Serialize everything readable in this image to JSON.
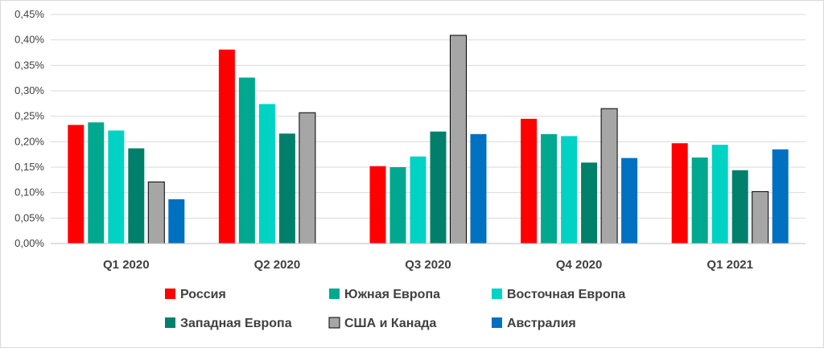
{
  "chart_data": {
    "type": "bar",
    "title": "",
    "xlabel": "",
    "ylabel": "",
    "categories": [
      "Q1 2020",
      "Q2 2020",
      "Q3 2020",
      "Q4 2020",
      "Q1 2021"
    ],
    "ylim": [
      0,
      0.45
    ],
    "yticks": [
      0,
      0.05,
      0.1,
      0.15,
      0.2,
      0.25,
      0.3,
      0.35,
      0.4,
      0.45
    ],
    "ytick_labels": [
      "0,00%",
      "0,05%",
      "0,10%",
      "0,15%",
      "0,20%",
      "0,25%",
      "0,30%",
      "0,35%",
      "0,40%",
      "0,45%"
    ],
    "grid": true,
    "legend_position": "bottom",
    "series": [
      {
        "name": "Россия",
        "color": "#ff0000",
        "values": [
          0.233,
          0.381,
          0.152,
          0.245,
          0.197
        ]
      },
      {
        "name": "Южная Европа",
        "color": "#00a88f",
        "values": [
          0.238,
          0.326,
          0.15,
          0.215,
          0.169
        ]
      },
      {
        "name": "Восточная Европа",
        "color": "#00d2c4",
        "values": [
          0.222,
          0.274,
          0.171,
          0.211,
          0.194
        ]
      },
      {
        "name": "Западная Европа",
        "color": "#00806a",
        "values": [
          0.187,
          0.216,
          0.22,
          0.159,
          0.144
        ]
      },
      {
        "name": "США и Канада",
        "color": "#a6a6a6",
        "values": [
          0.121,
          0.257,
          0.409,
          0.265,
          0.102
        ]
      },
      {
        "name": "Австралия",
        "color": "#0070c0",
        "values": [
          0.087,
          null,
          0.215,
          0.168,
          0.185
        ]
      }
    ]
  }
}
